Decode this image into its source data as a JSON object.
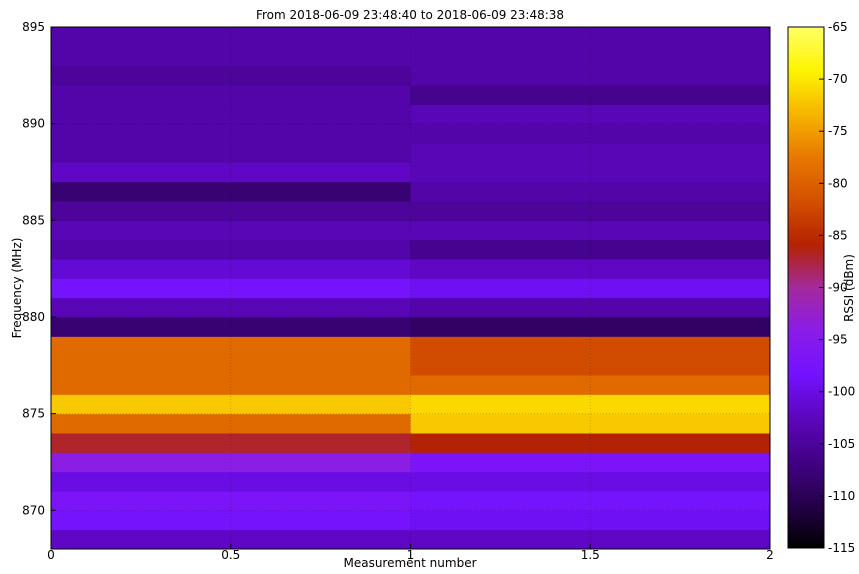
{
  "chart_data": {
    "type": "heatmap",
    "title": "From 2018-06-09 23:48:40 to 2018-06-09 23:48:38",
    "xlabel": "Measurement number",
    "ylabel": "Frequency (MHz)",
    "xlim": [
      0,
      2
    ],
    "ylim": [
      868,
      895
    ],
    "x_ticks": [
      0,
      0.5,
      1,
      1.5,
      2
    ],
    "x_tick_labels": [
      "0",
      "0.5",
      "1",
      "1.5",
      "2"
    ],
    "y_ticks": [
      870,
      875,
      880,
      885,
      890,
      895
    ],
    "y_tick_labels": [
      "870",
      "875",
      "880",
      "885",
      "890",
      "895"
    ],
    "grid": true,
    "columns": [
      {
        "x_start": 0,
        "x_end": 1
      },
      {
        "x_start": 1,
        "x_end": 2
      }
    ],
    "rows": [
      {
        "freq_low": 868,
        "freq_high": 869,
        "rssi": [
          -102,
          -102
        ]
      },
      {
        "freq_low": 869,
        "freq_high": 870,
        "rssi": [
          -98,
          -99
        ]
      },
      {
        "freq_low": 870,
        "freq_high": 871,
        "rssi": [
          -97,
          -98
        ]
      },
      {
        "freq_low": 871,
        "freq_high": 872,
        "rssi": [
          -100,
          -100
        ]
      },
      {
        "freq_low": 872,
        "freq_high": 873,
        "rssi": [
          -94,
          -97
        ]
      },
      {
        "freq_low": 873,
        "freq_high": 874,
        "rssi": [
          -87,
          -86
        ]
      },
      {
        "freq_low": 874,
        "freq_high": 875,
        "rssi": [
          -79,
          -72
        ]
      },
      {
        "freq_low": 875,
        "freq_high": 876,
        "rssi": [
          -72,
          -71
        ]
      },
      {
        "freq_low": 876,
        "freq_high": 877,
        "rssi": [
          -79,
          -79
        ]
      },
      {
        "freq_low": 877,
        "freq_high": 878,
        "rssi": [
          -79,
          -82
        ]
      },
      {
        "freq_low": 878,
        "freq_high": 879,
        "rssi": [
          -79,
          -82
        ]
      },
      {
        "freq_low": 879,
        "freq_high": 880,
        "rssi": [
          -108,
          -109
        ]
      },
      {
        "freq_low": 880,
        "freq_high": 881,
        "rssi": [
          -103,
          -104
        ]
      },
      {
        "freq_low": 881,
        "freq_high": 882,
        "rssi": [
          -98,
          -99
        ]
      },
      {
        "freq_low": 882,
        "freq_high": 883,
        "rssi": [
          -101,
          -102
        ]
      },
      {
        "freq_low": 883,
        "freq_high": 884,
        "rssi": [
          -104,
          -106
        ]
      },
      {
        "freq_low": 884,
        "freq_high": 885,
        "rssi": [
          -103,
          -103
        ]
      },
      {
        "freq_low": 885,
        "freq_high": 886,
        "rssi": [
          -105,
          -105
        ]
      },
      {
        "freq_low": 886,
        "freq_high": 887,
        "rssi": [
          -108,
          -104
        ]
      },
      {
        "freq_low": 887,
        "freq_high": 888,
        "rssi": [
          -102,
          -103
        ]
      },
      {
        "freq_low": 888,
        "freq_high": 889,
        "rssi": [
          -104,
          -103
        ]
      },
      {
        "freq_low": 889,
        "freq_high": 890,
        "rssi": [
          -104,
          -104
        ]
      },
      {
        "freq_low": 890,
        "freq_high": 891,
        "rssi": [
          -104,
          -103
        ]
      },
      {
        "freq_low": 891,
        "freq_high": 892,
        "rssi": [
          -104,
          -106
        ]
      },
      {
        "freq_low": 892,
        "freq_high": 893,
        "rssi": [
          -105,
          -104
        ]
      },
      {
        "freq_low": 893,
        "freq_high": 894,
        "rssi": [
          -104,
          -104
        ]
      },
      {
        "freq_low": 894,
        "freq_high": 895,
        "rssi": [
          -104,
          -104
        ]
      }
    ],
    "colorbar": {
      "label": "RSSI (dBm)",
      "range": [
        -115,
        -65
      ],
      "ticks": [
        -65,
        -70,
        -75,
        -80,
        -85,
        -90,
        -95,
        -100,
        -105,
        -110,
        -115
      ],
      "tick_labels": [
        "-65",
        "-70",
        "-75",
        "-80",
        "-85",
        "-90",
        "-95",
        "-100",
        "-105",
        "-110",
        "-115"
      ],
      "colormap": "gnuplot",
      "color_stops": [
        "#000000",
        "#25014a",
        "#420285",
        "#5c06bd",
        "#7312ff",
        "#8b1ce8",
        "#a42a9c",
        "#b52200",
        "#d45000",
        "#e87800",
        "#f6b500",
        "#fdf400",
        "#ffff66"
      ]
    }
  }
}
